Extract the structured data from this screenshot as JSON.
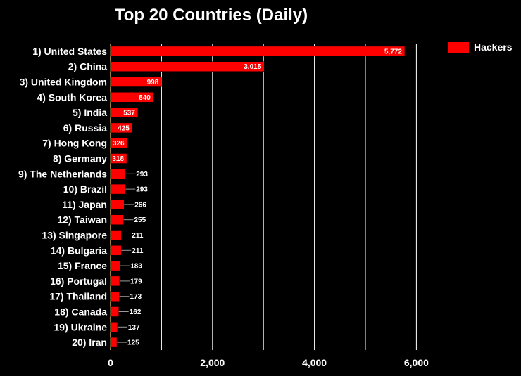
{
  "chart_data": {
    "type": "bar",
    "orientation": "horizontal",
    "title": "Top 20 Countries (Daily)",
    "categories": [
      "1) United States",
      "2) China",
      "3) United Kingdom",
      "4) South Korea",
      "5) India",
      "6) Russia",
      "7) Hong Kong",
      "8) Germany",
      "9) The Netherlands",
      "10) Brazil",
      "11) Japan",
      "12) Taiwan",
      "13) Singapore",
      "14) Bulgaria",
      "15) France",
      "16) Portugal",
      "17) Thailand",
      "18) Canada",
      "19) Ukraine",
      "20) Iran"
    ],
    "series": [
      {
        "name": "Hackers",
        "values": [
          5772,
          3015,
          998,
          840,
          537,
          425,
          326,
          318,
          293,
          293,
          266,
          255,
          211,
          211,
          183,
          179,
          173,
          162,
          137,
          125
        ],
        "data_labels": [
          "5,772",
          "3,015",
          "998",
          "840",
          "537",
          "425",
          "326",
          "318",
          "293",
          "293",
          "266",
          "255",
          "211",
          "211",
          "183",
          "179",
          "173",
          "162",
          "137",
          "125"
        ]
      }
    ],
    "x_ticks": [
      0,
      2000,
      4000,
      6000
    ],
    "x_tick_labels": [
      "0",
      "2,000",
      "4,000",
      "6,000"
    ],
    "xlim": [
      0,
      7500
    ],
    "grid": true,
    "legend_position": "top-right",
    "colors": {
      "bar": "#ff0000",
      "background": "#000000",
      "grid": "#ffffff",
      "text": "#ffffff"
    }
  }
}
